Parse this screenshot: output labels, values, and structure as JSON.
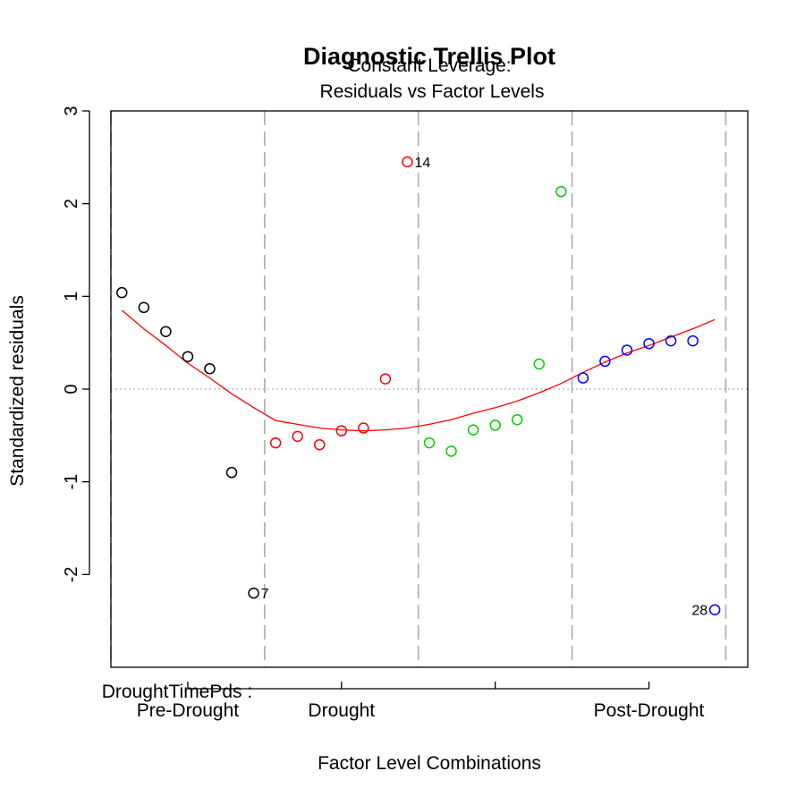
{
  "chart_data": {
    "type": "scatter",
    "title": "Diagnostic Trellis Plot",
    "subtitle_line1": "Constant Leverage:",
    "subtitle_line2": "Residuals vs Factor Levels",
    "xlabel": "Factor Level Combinations",
    "ylabel": "Standardized residuals",
    "factor_label": "DroughtTimePds :",
    "xlim": [
      0.5,
      29.5
    ],
    "ylim": [
      -3,
      3
    ],
    "y_ticks": [
      -2,
      -1,
      0,
      1,
      2,
      3
    ],
    "y_tick_labels": [
      "-2",
      "-1",
      "0",
      "1",
      "2",
      "3"
    ],
    "x_ticks": [
      4,
      11,
      18,
      25
    ],
    "category_labels": [
      {
        "x": 4,
        "label": "Pre-Drought"
      },
      {
        "x": 11,
        "label": "Drought"
      },
      {
        "x": 25,
        "label": "Post-Drought"
      }
    ],
    "group_boundaries": [
      0.5,
      7.5,
      14.5,
      21.5,
      28.5
    ],
    "zero_line": 0,
    "series": [
      {
        "color": "#000000",
        "x": [
          1,
          2,
          3,
          4,
          5,
          6,
          7
        ],
        "y": [
          1.04,
          0.88,
          0.62,
          0.35,
          0.22,
          -0.9,
          -2.2
        ]
      },
      {
        "color": "#ff0000",
        "x": [
          8,
          9,
          10,
          11,
          12,
          13,
          14
        ],
        "y": [
          -0.58,
          -0.51,
          -0.6,
          -0.45,
          -0.42,
          0.11,
          2.45
        ]
      },
      {
        "color": "#00cd00",
        "x": [
          15,
          16,
          17,
          18,
          19,
          20,
          21
        ],
        "y": [
          -0.58,
          -0.67,
          -0.44,
          -0.39,
          -0.33,
          0.27,
          2.13
        ]
      },
      {
        "color": "#0000ff",
        "x": [
          22,
          23,
          24,
          25,
          26,
          27,
          28
        ],
        "y": [
          0.12,
          0.3,
          0.42,
          0.49,
          0.52,
          0.52,
          -2.38
        ]
      }
    ],
    "smooth": {
      "color": "#ff0000",
      "x": [
        1,
        2,
        3,
        4,
        5,
        6,
        7,
        8,
        9,
        10,
        11,
        12,
        13,
        14,
        15,
        16,
        17,
        18,
        19,
        20,
        21,
        22,
        23,
        24,
        25,
        26,
        27,
        28
      ],
      "y": [
        0.85,
        0.65,
        0.47,
        0.28,
        0.12,
        -0.05,
        -0.2,
        -0.34,
        -0.38,
        -0.42,
        -0.44,
        -0.45,
        -0.44,
        -0.42,
        -0.38,
        -0.33,
        -0.26,
        -0.2,
        -0.13,
        -0.04,
        0.06,
        0.18,
        0.29,
        0.39,
        0.47,
        0.56,
        0.65,
        0.75
      ]
    },
    "annotations": [
      {
        "x": 7,
        "y": -2.2,
        "text": "7",
        "side": "right"
      },
      {
        "x": 14,
        "y": 2.45,
        "text": "14",
        "side": "right"
      },
      {
        "x": 28,
        "y": -2.38,
        "text": "28",
        "side": "left"
      }
    ]
  }
}
